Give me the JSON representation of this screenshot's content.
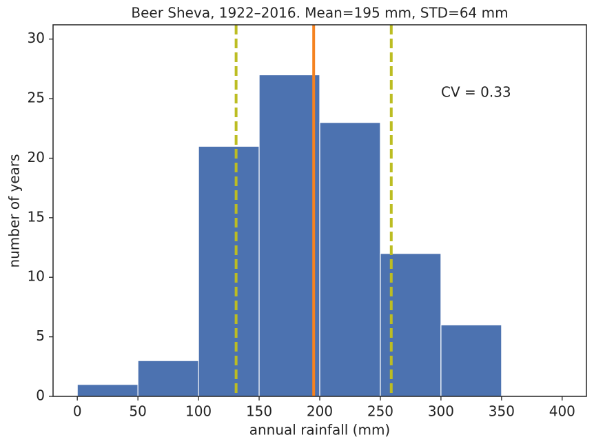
{
  "chart_data": {
    "type": "histogram",
    "title": "Beer Sheva, 1922–2016. Mean=195 mm, STD=64 mm",
    "xlabel": "annual rainfall (mm)",
    "ylabel": "number of years",
    "bins": [
      0,
      50,
      100,
      150,
      200,
      250,
      300,
      350,
      400
    ],
    "counts": [
      1,
      3,
      21,
      27,
      23,
      12,
      6,
      0
    ],
    "color": "#4c72b0",
    "vlines": [
      {
        "value": 195,
        "color": "#f58220",
        "style": "solid"
      },
      {
        "value": 131,
        "color": "#bcbd22",
        "style": "dashed"
      },
      {
        "value": 259,
        "color": "#bcbd22",
        "style": "dashed"
      }
    ],
    "annotation": "CV = 0.33",
    "xlim": [
      -20,
      420
    ],
    "ylim": [
      0,
      31.2
    ],
    "xticks": [
      0,
      50,
      100,
      150,
      200,
      250,
      300,
      350,
      400
    ],
    "yticks": [
      0,
      5,
      10,
      15,
      20,
      25,
      30
    ]
  }
}
